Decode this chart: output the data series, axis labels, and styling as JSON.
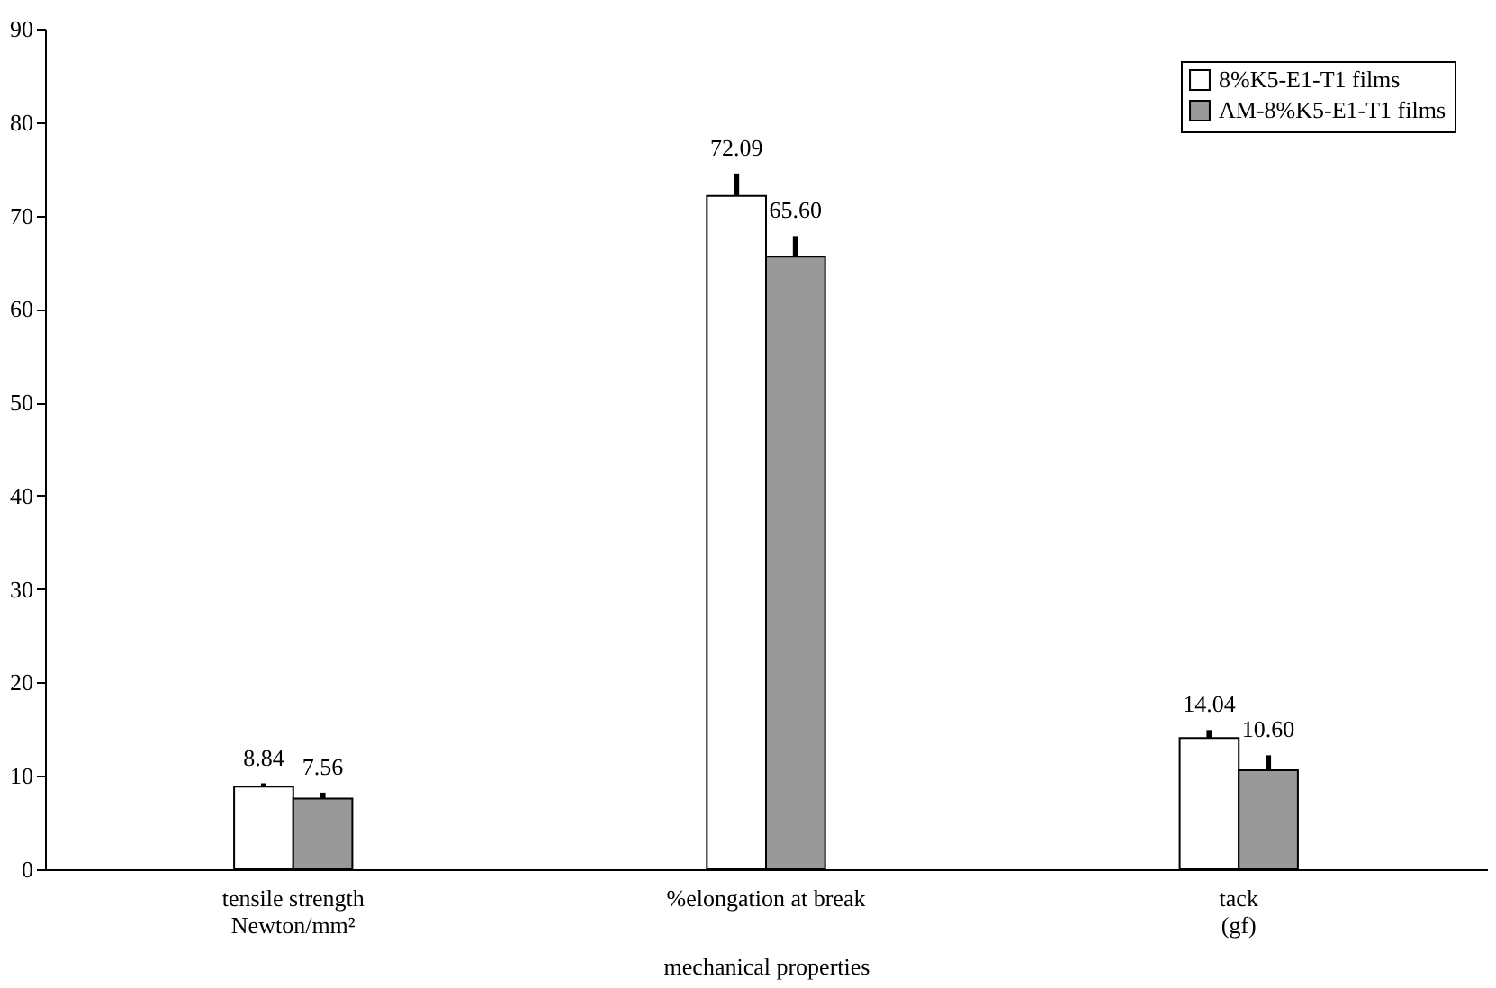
{
  "chart_data": {
    "type": "bar",
    "xlabel": "mechanical properties",
    "categories": [
      "tensile strength\nNewton/mm²",
      "%elongation at break",
      "tack\n(gf)"
    ],
    "series": [
      {
        "name": "8%K5-E1-T1 films",
        "color": "#ffffff",
        "values": [
          8.84,
          72.09,
          14.04
        ],
        "value_labels": [
          "8.84",
          "72.09",
          "14.04"
        ],
        "errors": [
          [
            8.84,
            9.2
          ],
          [
            72.09,
            74.5
          ],
          [
            14.04,
            14.9
          ]
        ]
      },
      {
        "name": "AM-8%K5-E1-T1 films",
        "color": "#999999",
        "values": [
          7.56,
          65.6,
          10.6
        ],
        "value_labels": [
          "7.56",
          "65.60",
          "10.60"
        ],
        "errors": [
          [
            7.56,
            8.2
          ],
          [
            65.6,
            67.8
          ],
          [
            10.6,
            12.2
          ]
        ]
      }
    ],
    "ylim": [
      0,
      90
    ],
    "yticks": [
      0,
      10,
      20,
      30,
      40,
      50,
      60,
      70,
      80,
      90
    ],
    "grid": false,
    "legend": "top right"
  }
}
